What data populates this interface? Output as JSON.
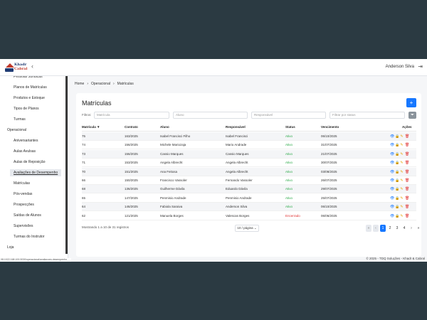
{
  "header": {
    "logo_line1": "Khadr",
    "logo_line2": "Cabral",
    "user_name": "Anderson Silva"
  },
  "sidebar": {
    "items": [
      {
        "label": "Pessoas Jurídicas",
        "kind": "sub"
      },
      {
        "label": "Planos de Matrículas",
        "kind": "sub"
      },
      {
        "label": "Produtos e Estoque",
        "kind": "sub"
      },
      {
        "label": "Tipos de Planos",
        "kind": "sub"
      },
      {
        "label": "Turmas",
        "kind": "sub"
      },
      {
        "label": "Operacional",
        "kind": "section"
      },
      {
        "label": "Aniversariantes",
        "kind": "sub"
      },
      {
        "label": "Aulas Avulsas",
        "kind": "sub"
      },
      {
        "label": "Aulas de Reposição",
        "kind": "sub"
      },
      {
        "label": "Avaliações de Desempenho",
        "kind": "sub",
        "active": true
      },
      {
        "label": "Matrículas",
        "kind": "sub"
      },
      {
        "label": "Pós-vendas",
        "kind": "sub"
      },
      {
        "label": "Prospecções",
        "kind": "sub"
      },
      {
        "label": "Saídas de Alunos",
        "kind": "sub"
      },
      {
        "label": "Supervisões",
        "kind": "sub"
      },
      {
        "label": "Turmas do Instrutor",
        "kind": "sub"
      },
      {
        "label": "Loja",
        "kind": "section"
      }
    ],
    "status_url": "08.1022.168.100:3030/operacional/avaliacoes-desempenho"
  },
  "breadcrumb": [
    "Home",
    "Operacional",
    "Matrículas"
  ],
  "page": {
    "title": "Matrículas",
    "add_label": "+"
  },
  "filters": {
    "label": "Filtros:",
    "matricula_placeholder": "Matrícula",
    "aluno_placeholder": "Aluno",
    "responsavel_placeholder": "Responsável",
    "status_placeholder": "Filtrar por status"
  },
  "table": {
    "headers": [
      "Matrícula ▼",
      "Contrato",
      "Aluno",
      "Responsável",
      "Status",
      "Vencimento",
      "Ações"
    ],
    "rows": [
      {
        "matricula": "75",
        "contrato": "163/2025",
        "aluno": "Isabel Francisci Filho",
        "responsavel": "Isabel Francisci",
        "status": "Ativo",
        "vencimento": "06/10/2025"
      },
      {
        "matricula": "74",
        "contrato": "156/2025",
        "aluno": "Michele Mariozaja",
        "responsavel": "Mario Andrade",
        "status": "Ativo",
        "vencimento": "31/07/2025"
      },
      {
        "matricula": "73",
        "contrato": "156/2025",
        "aluno": "Cassio Marques",
        "responsavel": "Cassio Marques",
        "status": "Ativo",
        "vencimento": "21/07/2025"
      },
      {
        "matricula": "71",
        "contrato": "153/2025",
        "aluno": "Angela Albrecht",
        "responsavel": "Angela Albrecht",
        "status": "Ativo",
        "vencimento": "30/07/2025"
      },
      {
        "matricula": "70",
        "contrato": "151/2025",
        "aluno": "Ana Feitosa",
        "responsavel": "Angela Albrecht",
        "status": "Ativo",
        "vencimento": "03/08/2025"
      },
      {
        "matricula": "66",
        "contrato": "150/2025",
        "aluno": "Francisco Vassoler",
        "responsavel": "Fernando Vassoler",
        "status": "Ativo",
        "vencimento": "26/07/2025"
      },
      {
        "matricula": "68",
        "contrato": "136/2025",
        "aluno": "Guilherme Dávila",
        "responsavel": "Eduardo Dávila",
        "status": "Ativo",
        "vencimento": "29/07/2025"
      },
      {
        "matricula": "65",
        "contrato": "147/2025",
        "aluno": "Penmisio Andrade",
        "responsavel": "Penmisio Andrade",
        "status": "Ativo",
        "vencimento": "25/07/2025"
      },
      {
        "matricula": "64",
        "contrato": "146/2025",
        "aluno": "Fabiola Saraiva",
        "responsavel": "Anderson Silva",
        "status": "Ativo",
        "vencimento": "06/10/2025"
      },
      {
        "matricula": "62",
        "contrato": "121/2025",
        "aluno": "Manuela Borges",
        "responsavel": "Valescas Borges",
        "status": "Encerrado",
        "vencimento": "06/06/2025"
      }
    ]
  },
  "footer": {
    "range_text": "Mostrando 1 a 10 de 31 registros",
    "page_size": "10 / página ⌄",
    "pages": [
      "1",
      "2",
      "3",
      "4"
    ],
    "current_page": "1",
    "copyright": "© 2025 - TDQ Soluções - Khadr & Cabral"
  },
  "colors": {
    "accent": "#1677ff",
    "active_status": "#27a844",
    "closed_status": "#e03131"
  }
}
